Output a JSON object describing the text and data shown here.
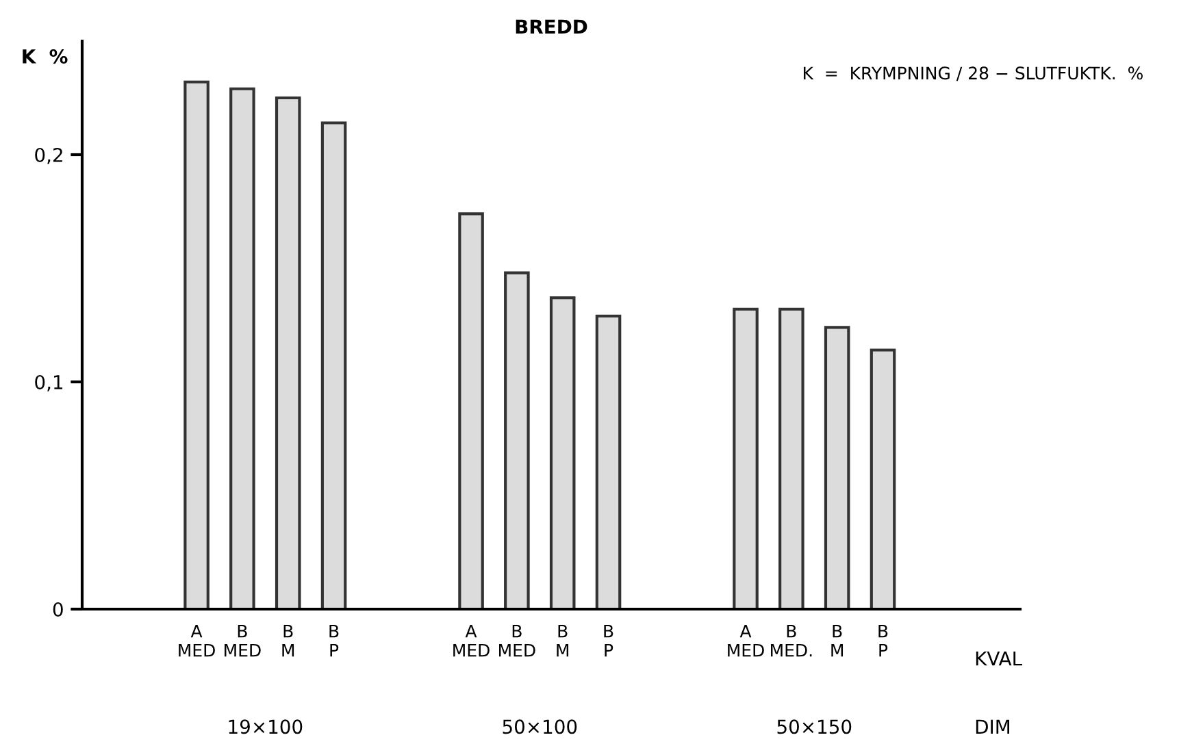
{
  "chart_data": {
    "type": "bar",
    "title": "BREDD",
    "ylabel": "K  %",
    "categories": [
      "A\nMED",
      "B\nMED",
      "B\nM",
      "B\nP",
      null,
      null,
      "A\nMED",
      "B\nMED",
      "B\nM",
      "B\nP",
      null,
      null,
      "A\nMED",
      "B\nMED.",
      "B\nM",
      "B\nP"
    ],
    "values": [
      0.232,
      0.229,
      0.225,
      0.214,
      null,
      null,
      0.174,
      0.148,
      0.137,
      0.129,
      null,
      null,
      0.132,
      0.132,
      0.124,
      0.114
    ],
    "color": "#dcdcdc",
    "ylim": [
      0,
      0.25
    ],
    "yticks": [
      0,
      {
        "value": 0.1,
        "label": "0,1"
      },
      {
        "value": 0.2,
        "label": "0,2"
      }
    ],
    "annotations": [
      "19×100",
      "50×100",
      "50×150",
      "KVAL",
      "DIM",
      "K  =  KRYMPNING / 28 − SLUTFUKTK.  %"
    ],
    "grid": false,
    "legend": false
  }
}
